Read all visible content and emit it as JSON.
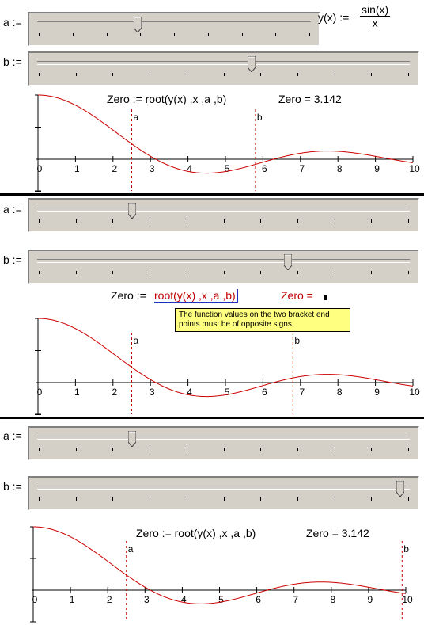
{
  "labels": {
    "a": "a :=",
    "b": "b :="
  },
  "definition": {
    "lhs": "y(x) :=",
    "num": "sin(x)",
    "den": "x"
  },
  "panels": [
    {
      "a_value": 2.5,
      "b_value": 5.8,
      "formula": "Zero := root(y(x) ,x ,a ,b)",
      "result": "Zero = 3.142",
      "marker_a": "a",
      "marker_b": "b"
    },
    {
      "a_value": 2.5,
      "b_value": 6.8,
      "formula_prefix": "Zero :=",
      "formula_err": "root(y(x) ,x ,a ,b)",
      "result_err": "Zero =",
      "error_message": "The function values on the two bracket end points must be of opposite signs.",
      "marker_a": "a",
      "marker_b": "b"
    },
    {
      "a_value": 2.5,
      "b_value": 9.9,
      "formula": "Zero := root(y(x) ,x ,a ,b)",
      "result": "Zero = 3.142",
      "marker_a": "a",
      "marker_b": "b"
    }
  ],
  "chart_data": [
    {
      "type": "line",
      "function": "sin(x)/x",
      "x_range": [
        0,
        10
      ],
      "xticks": [
        "0",
        "1",
        "2",
        "3",
        "4",
        "5",
        "6",
        "7",
        "8",
        "9",
        "10"
      ],
      "series": [
        {
          "color": "#cc0000"
        }
      ],
      "vlines": [
        {
          "x": 2.5,
          "label": "a"
        },
        {
          "x": 5.8,
          "label": "b"
        }
      ]
    },
    {
      "type": "line",
      "function": "sin(x)/x",
      "x_range": [
        0,
        10
      ],
      "xticks": [
        "0",
        "1",
        "2",
        "3",
        "4",
        "5",
        "6",
        "7",
        "8",
        "9",
        "10"
      ],
      "series": [
        {
          "color": "#cc0000"
        }
      ],
      "vlines": [
        {
          "x": 2.5,
          "label": "a"
        },
        {
          "x": 6.8,
          "label": "b"
        }
      ]
    },
    {
      "type": "line",
      "function": "sin(x)/x",
      "x_range": [
        0,
        10
      ],
      "xticks": [
        "0",
        "1",
        "2",
        "3",
        "4",
        "5",
        "6",
        "7",
        "8",
        "9",
        "10"
      ],
      "series": [
        {
          "color": "#cc0000"
        }
      ],
      "vlines": [
        {
          "x": 2.5,
          "label": "a"
        },
        {
          "x": 9.9,
          "label": "b"
        }
      ]
    }
  ],
  "colors": {
    "curve": "#cc0000",
    "marker": "#cc0000",
    "error": "#c00000"
  }
}
